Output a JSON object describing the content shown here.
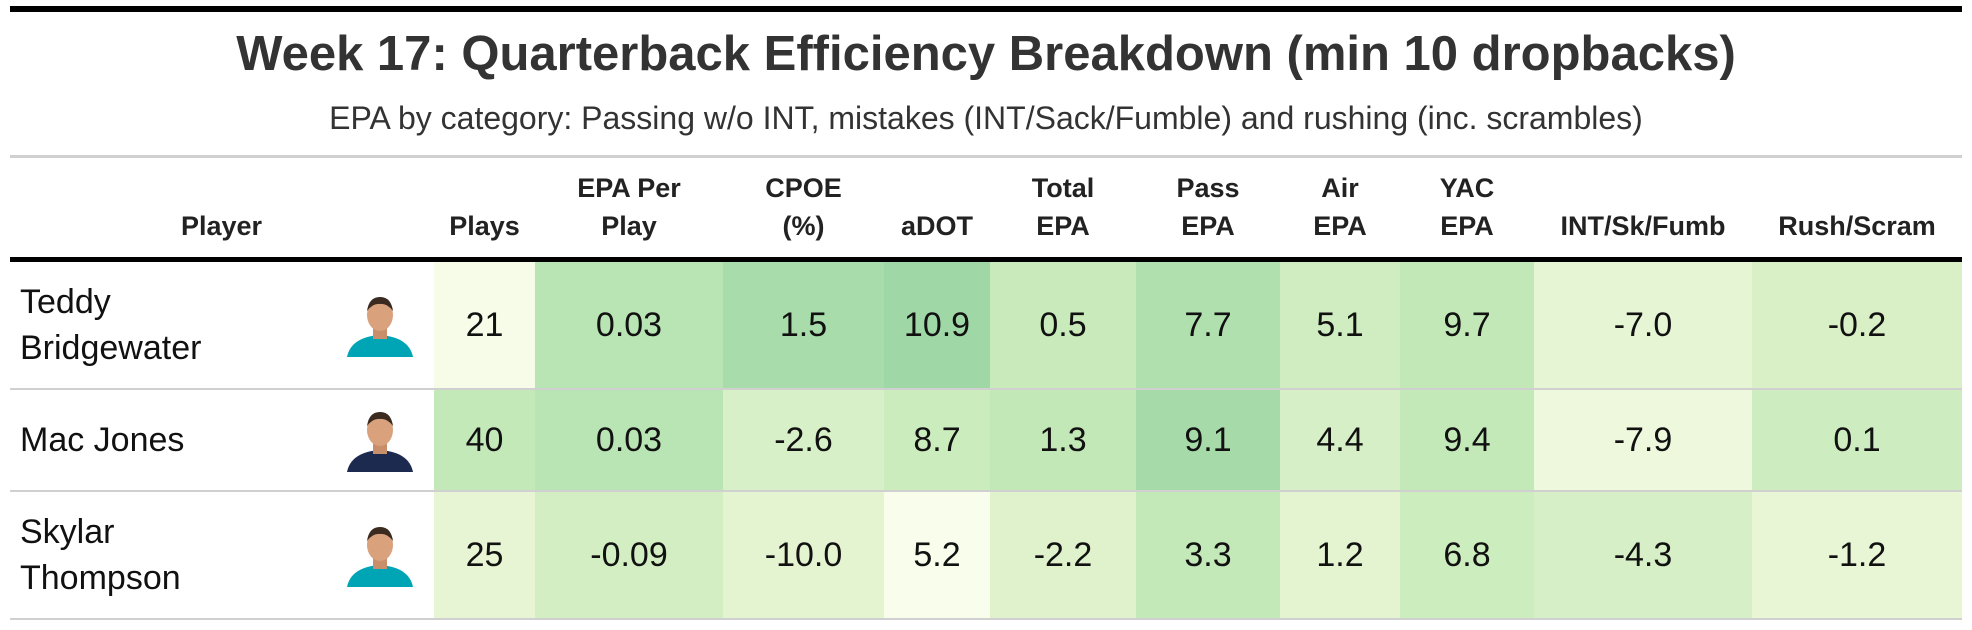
{
  "header": {
    "title": "Week 17: Quarterback Efficiency Breakdown (min 10 dropbacks)",
    "subtitle": "EPA by category: Passing w/o INT, mistakes (INT/Sack/Fumble) and rushing (inc. scrambles)"
  },
  "table": {
    "columns": [
      [
        "Player"
      ],
      [
        "Plays"
      ],
      [
        "EPA Per",
        "Play"
      ],
      [
        "CPOE",
        "(%)"
      ],
      [
        "aDOT"
      ],
      [
        "Total",
        "EPA"
      ],
      [
        "Pass",
        "EPA"
      ],
      [
        "Air",
        "EPA"
      ],
      [
        "YAC",
        "EPA"
      ],
      [
        "INT/Sk/Fumb"
      ],
      [
        "Rush/Scram"
      ]
    ],
    "rows": [
      {
        "player": "Teddy Bridgewater",
        "jersey": "#00a5b5",
        "cells": [
          "21",
          "0.03",
          "1.5",
          "10.9",
          "0.5",
          "7.7",
          "5.1",
          "9.7",
          "-7.0",
          "-0.2"
        ],
        "colors": [
          "#f7fce9",
          "#b9e4b3",
          "#a8dcaa",
          "#9fd8a6",
          "#c9ebbc",
          "#b0e0ae",
          "#cfedc0",
          "#c3e8b8",
          "#e6f5d3",
          "#d9f0c7"
        ]
      },
      {
        "player": "Mac Jones",
        "jersey": "#1d2a4f",
        "cells": [
          "40",
          "0.03",
          "-2.6",
          "8.7",
          "1.3",
          "9.1",
          "4.4",
          "9.4",
          "-7.9",
          "0.1"
        ],
        "colors": [
          "#c4e9b9",
          "#b9e4b3",
          "#d8f0c8",
          "#cbecbd",
          "#c2e8b8",
          "#a6dba9",
          "#d6efc6",
          "#c4e9b9",
          "#eef8dc",
          "#cdecbf"
        ]
      },
      {
        "player": "Skylar Thompson",
        "jersey": "#00a5b5",
        "cells": [
          "25",
          "-0.09",
          "-10.0",
          "5.2",
          "-2.2",
          "3.3",
          "1.2",
          "6.8",
          "-4.3",
          "-1.2"
        ],
        "colors": [
          "#e8f5d4",
          "#d3eec3",
          "#e4f4d0",
          "#f9fdec",
          "#dff2cb",
          "#c4e9b9",
          "#e4f4d1",
          "#cceebe",
          "#d6efc6",
          "#e9f6d6"
        ]
      }
    ]
  }
}
